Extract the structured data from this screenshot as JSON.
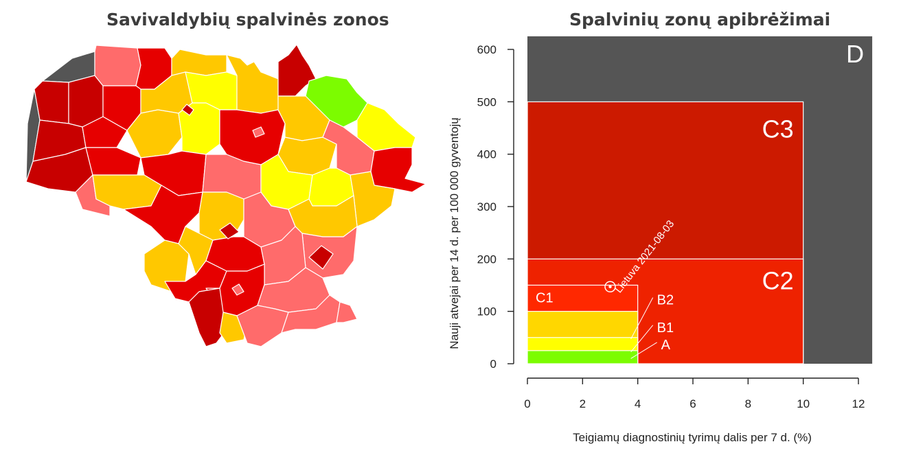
{
  "left_panel": {
    "title": "Savivaldybių spalvinės zonos"
  },
  "right_panel": {
    "title": "Spalvinių zonų apibrėžimai"
  },
  "colors": {
    "A": "#7cfc00",
    "B1": "#ffff00",
    "B2": "#ffd700",
    "C1": "#ff2800",
    "C2": "#ee2200",
    "C3": "#cc1a00",
    "D": "#555555",
    "light_red": "#ff6b6b",
    "dark_red": "#c80000",
    "orange_yellow": "#ffc800",
    "border": "#ffffff"
  },
  "chart_data": {
    "type": "area",
    "title": "Spalvinių zonų apibrėžimai",
    "xlabel": "Teigiamų diagnostinių tyrimų dalis per 7 d. (%)",
    "ylabel": "Nauji atvejai per 14 d. per 100 000 gyventojų",
    "xlim": [
      0,
      12
    ],
    "ylim": [
      0,
      600
    ],
    "x_ticks": [
      0,
      2,
      4,
      6,
      8,
      10,
      12
    ],
    "y_ticks": [
      0,
      100,
      200,
      300,
      400,
      500,
      600
    ],
    "zones": [
      {
        "name": "D",
        "x": [
          0,
          12.5
        ],
        "y": [
          0,
          625
        ],
        "color": "#555555"
      },
      {
        "name": "C3",
        "x": [
          0,
          10
        ],
        "y": [
          0,
          500
        ],
        "color": "#cc1a00"
      },
      {
        "name": "C2",
        "x": [
          0,
          10
        ],
        "y": [
          0,
          200
        ],
        "color": "#ee2200"
      },
      {
        "name": "C1",
        "x": [
          0,
          4
        ],
        "y": [
          0,
          150
        ],
        "color": "#ff2800"
      },
      {
        "name": "B2",
        "x": [
          0,
          4
        ],
        "y": [
          0,
          100
        ],
        "color": "#ffd700"
      },
      {
        "name": "B1",
        "x": [
          0,
          4
        ],
        "y": [
          0,
          50
        ],
        "color": "#ffff00"
      },
      {
        "name": "A",
        "x": [
          0,
          4
        ],
        "y": [
          0,
          25
        ],
        "color": "#7cfc00"
      }
    ],
    "point": {
      "label": "Lietuva 2021-08-03",
      "x": 3,
      "y": 147
    }
  }
}
